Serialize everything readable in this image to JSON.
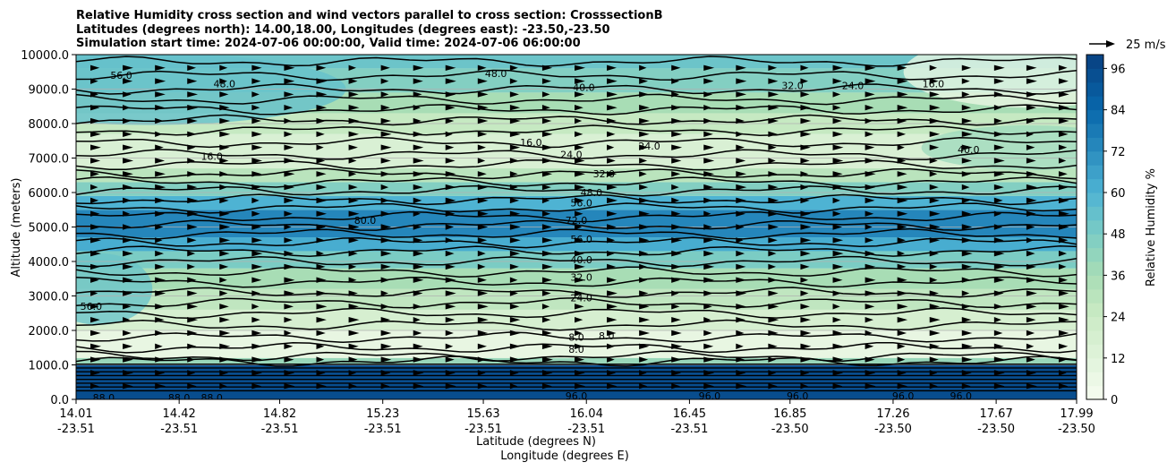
{
  "chart_data": {
    "type": "heatmap",
    "title_lines": [
      "Relative Humidity cross section and wind vectors parallel to cross section: CrosssectionB",
      "Latitudes (degrees north): 14.00,18.00, Longitudes (degrees east): -23.50,-23.50",
      "Simulation start time: 2024-07-06 00:00:00, Valid time: 2024-07-06 06:00:00"
    ],
    "xlabel": "Latitude (degrees N)",
    "xlabel2": "Longitude (degrees E)",
    "ylabel": "Altitude (meters)",
    "x_ticks": [
      {
        "lat": "14.01",
        "lon": "-23.51"
      },
      {
        "lat": "14.42",
        "lon": "-23.51"
      },
      {
        "lat": "14.82",
        "lon": "-23.51"
      },
      {
        "lat": "15.23",
        "lon": "-23.51"
      },
      {
        "lat": "15.63",
        "lon": "-23.51"
      },
      {
        "lat": "16.04",
        "lon": "-23.51"
      },
      {
        "lat": "16.45",
        "lon": "-23.51"
      },
      {
        "lat": "16.85",
        "lon": "-23.50"
      },
      {
        "lat": "17.26",
        "lon": "-23.50"
      },
      {
        "lat": "17.67",
        "lon": "-23.50"
      },
      {
        "lat": "17.99",
        "lon": "-23.50"
      }
    ],
    "x_tick_values": [
      14.01,
      14.42,
      14.82,
      15.23,
      15.63,
      16.04,
      16.45,
      16.85,
      17.26,
      17.67,
      17.99
    ],
    "xlim": [
      14.01,
      17.99
    ],
    "y_ticks": [
      "0.0",
      "1000.0",
      "2000.0",
      "3000.0",
      "4000.0",
      "5000.0",
      "6000.0",
      "7000.0",
      "8000.0",
      "9000.0",
      "10000.0"
    ],
    "ylim": [
      0,
      10000
    ],
    "grid": "horizontal",
    "colorbar": {
      "label": "Relative Humidity %",
      "min": 0,
      "max": 100,
      "ticks": [
        "0",
        "12",
        "24",
        "36",
        "48",
        "60",
        "72",
        "84",
        "96"
      ],
      "colormap": "GnBu"
    },
    "quiver_key": "25 m/s",
    "contour_labels": [
      {
        "text": "56.0",
        "lat": 14.19,
        "alt": 9400
      },
      {
        "text": "48.0",
        "lat": 14.6,
        "alt": 9150
      },
      {
        "text": "16.0",
        "lat": 14.55,
        "alt": 7050
      },
      {
        "text": "48.0",
        "lat": 15.68,
        "alt": 9450
      },
      {
        "text": "40.0",
        "lat": 16.03,
        "alt": 9050
      },
      {
        "text": "16.0",
        "lat": 15.82,
        "alt": 7450
      },
      {
        "text": "24.0",
        "lat": 15.98,
        "alt": 7100
      },
      {
        "text": "24.0",
        "lat": 16.29,
        "alt": 7350
      },
      {
        "text": "32.0",
        "lat": 16.11,
        "alt": 6550
      },
      {
        "text": "48.0",
        "lat": 16.06,
        "alt": 6000
      },
      {
        "text": "56.0",
        "lat": 16.02,
        "alt": 5700
      },
      {
        "text": "72.0",
        "lat": 16.0,
        "alt": 5200
      },
      {
        "text": "80.0",
        "lat": 15.16,
        "alt": 5200
      },
      {
        "text": "56.0",
        "lat": 16.02,
        "alt": 4650
      },
      {
        "text": "40.0",
        "lat": 16.02,
        "alt": 4050
      },
      {
        "text": "32.0",
        "lat": 16.02,
        "alt": 3550
      },
      {
        "text": "24.0",
        "lat": 16.02,
        "alt": 2950
      },
      {
        "text": "56.0",
        "lat": 14.07,
        "alt": 2700
      },
      {
        "text": "8.0",
        "lat": 16.0,
        "alt": 1800
      },
      {
        "text": "8.0",
        "lat": 16.12,
        "alt": 1850
      },
      {
        "text": "8.0",
        "lat": 16.0,
        "alt": 1450
      },
      {
        "text": "96.0",
        "lat": 16.0,
        "alt": 100
      },
      {
        "text": "88.0",
        "lat": 14.12,
        "alt": 50
      },
      {
        "text": "88.0",
        "lat": 14.42,
        "alt": 50
      },
      {
        "text": "88.0",
        "lat": 14.55,
        "alt": 50
      },
      {
        "text": "96.0",
        "lat": 16.53,
        "alt": 100
      },
      {
        "text": "96.0",
        "lat": 16.88,
        "alt": 100
      },
      {
        "text": "96.0",
        "lat": 17.3,
        "alt": 100
      },
      {
        "text": "96.0",
        "lat": 17.53,
        "alt": 100
      },
      {
        "text": "32.0",
        "lat": 16.86,
        "alt": 9100
      },
      {
        "text": "24.0",
        "lat": 17.1,
        "alt": 9100
      },
      {
        "text": "16.0",
        "lat": 17.42,
        "alt": 9150
      },
      {
        "text": "40.0",
        "lat": 17.56,
        "alt": 7250
      }
    ]
  }
}
